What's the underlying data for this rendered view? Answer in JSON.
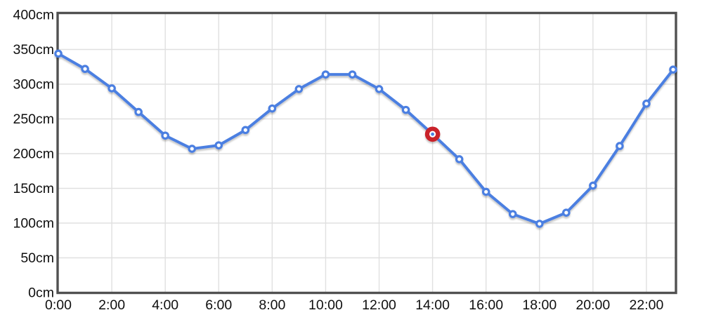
{
  "chart_data": {
    "type": "line",
    "title": "",
    "xlabel": "",
    "ylabel": "",
    "unit": "cm",
    "categories": [
      "0:00",
      "1:00",
      "2:00",
      "3:00",
      "4:00",
      "5:00",
      "6:00",
      "7:00",
      "8:00",
      "9:00",
      "10:00",
      "11:00",
      "12:00",
      "13:00",
      "14:00",
      "15:00",
      "16:00",
      "17:00",
      "18:00",
      "19:00",
      "20:00",
      "21:00",
      "22:00",
      "23:00"
    ],
    "values": [
      344,
      322,
      294,
      260,
      226,
      207,
      212,
      234,
      265,
      293,
      314,
      314,
      293,
      263,
      228,
      192,
      145,
      113,
      99,
      115,
      154,
      211,
      272,
      321
    ],
    "highlighted": {
      "index": 14,
      "category": "14:00",
      "value": 228
    },
    "ylim": [
      0,
      400
    ],
    "ytick_step": 50,
    "ytick_suffix": "cm",
    "xtick_labels": [
      "0:00",
      "2:00",
      "4:00",
      "6:00",
      "8:00",
      "10:00",
      "12:00",
      "14:00",
      "16:00",
      "18:00",
      "20:00",
      "22:00"
    ],
    "xtick_every": 2,
    "grid": true,
    "legend_position": "none",
    "colors": {
      "line": "#4c7fe1",
      "marker_fill": "#ffffff",
      "highlight_ring": "#c9242b",
      "grid": "#e0e0e0",
      "axis_border": "#515151",
      "tick_text": "#0f0f0f",
      "background": "#ffffff"
    }
  }
}
